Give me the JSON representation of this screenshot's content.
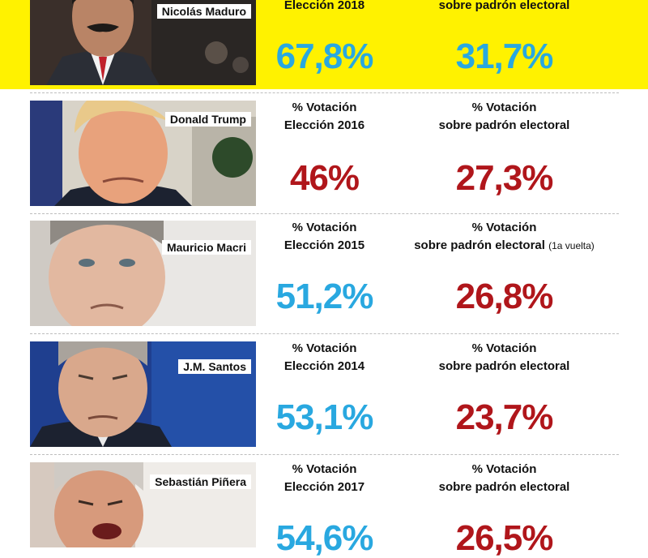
{
  "colors": {
    "highlight": "#fff200",
    "blue": "#29a8e0",
    "red": "#b0161b"
  },
  "rows": [
    {
      "name": "Nicolás Maduro",
      "label1": "Elección 2018",
      "label2": "sobre padrón electoral",
      "value1": "67,8%",
      "value2": "31,7%"
    },
    {
      "name": "Donald Trump",
      "label1_a": "% Votación",
      "label1_b": "Elección 2016",
      "label2_a": "% Votación",
      "label2_b": "sobre padrón electoral",
      "value1": "46%",
      "value2": "27,3%"
    },
    {
      "name": "Mauricio Macri",
      "label1_a": "% Votación",
      "label1_b": "Elección 2015",
      "label2_a": "% Votación",
      "label2_b": "sobre padrón electoral",
      "label2_note": "(1a vuelta)",
      "value1": "51,2%",
      "value2": "26,8%"
    },
    {
      "name": "J.M. Santos",
      "label1_a": "% Votación",
      "label1_b": "Elección 2014",
      "label2_a": "% Votación",
      "label2_b": "sobre padrón electoral",
      "value1": "53,1%",
      "value2": "23,7%"
    },
    {
      "name": "Sebastián Piñera",
      "label1_a": "% Votación",
      "label1_b": "Elección 2017",
      "label2_a": "% Votación",
      "label2_b": "sobre padrón electoral",
      "value1": "54,6%",
      "value2": "26,5%"
    }
  ]
}
